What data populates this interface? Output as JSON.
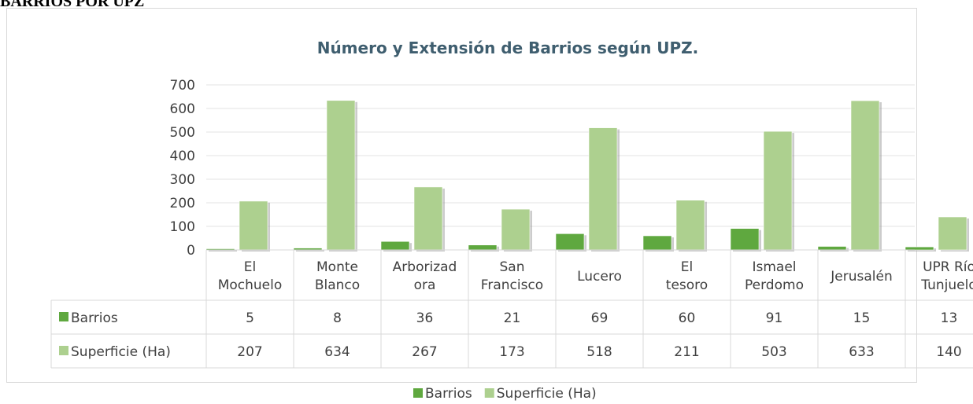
{
  "heading": "BARRIOS POR UPZ",
  "chart_data": {
    "type": "bar",
    "title": "Número y Extensión de Barrios según UPZ.",
    "categories": [
      "El Mochuelo",
      "Monte Blanco",
      "Arborizadora",
      "San Francisco",
      "Lucero",
      "El tesoro",
      "Ismael Perdomo",
      "Jerusalén",
      "UPR Río Tunjuelo"
    ],
    "series": [
      {
        "name": "Barrios",
        "color": "#5fa83f",
        "values": [
          5,
          8,
          36,
          21,
          69,
          60,
          91,
          15,
          13
        ]
      },
      {
        "name": "Superficie (Ha)",
        "color": "#add08f",
        "values": [
          207,
          634,
          267,
          173,
          518,
          211,
          503,
          633,
          140
        ]
      }
    ],
    "ylim": [
      0,
      700
    ],
    "yticks": [
      0,
      100,
      200,
      300,
      400,
      500,
      600,
      700
    ],
    "grid": true,
    "legend": "bottom",
    "data_table": true
  }
}
